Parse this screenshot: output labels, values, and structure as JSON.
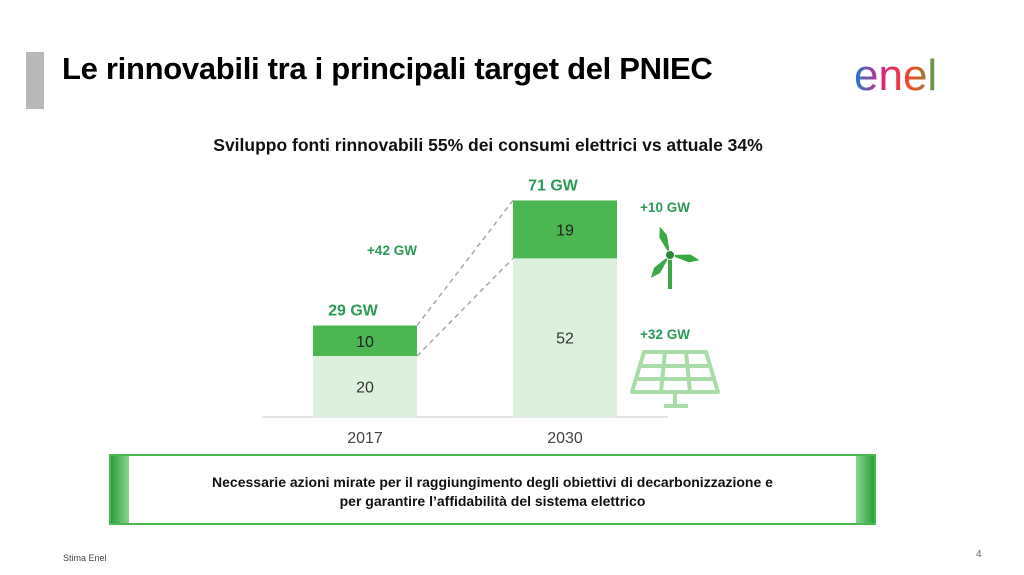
{
  "slide": {
    "title": "Le rinnovabili tra i principali target del PNIEC",
    "logo_text": "enel",
    "footnote": "Stima Enel",
    "page_number": "4",
    "message_line1": "Necessarie azioni mirate per il raggiungimento degli obiettivi di decarbonizzazione e",
    "message_line2": "per garantire l’affidabilità del sistema elettrico"
  },
  "colors": {
    "accent_green": "#2a9a55",
    "dark_segment": "#4cb652",
    "light_segment": "#dcf0dd",
    "icon_green": "#3aa844",
    "solar_green": "#a9dca9"
  },
  "icons": {
    "wind": "wind-turbine-icon",
    "solar": "solar-panel-icon"
  },
  "chart_data": {
    "type": "bar",
    "stacked": true,
    "title": "Sviluppo fonti rinnovabili 55% dei consumi elettrici vs attuale 34%",
    "categories": [
      "2017",
      "2030"
    ],
    "series": [
      {
        "values": [
          20,
          52
        ]
      },
      {
        "values": [
          10,
          19
        ]
      }
    ],
    "totals": [
      "29 GW",
      "71 GW"
    ],
    "annotations": {
      "growth": "+42 GW",
      "wind_growth": "+10 GW",
      "solar_growth": "+32 GW"
    },
    "xlabel": "",
    "ylabel": "",
    "ylim": [
      0,
      75
    ],
    "grid": false,
    "legend": "none"
  }
}
